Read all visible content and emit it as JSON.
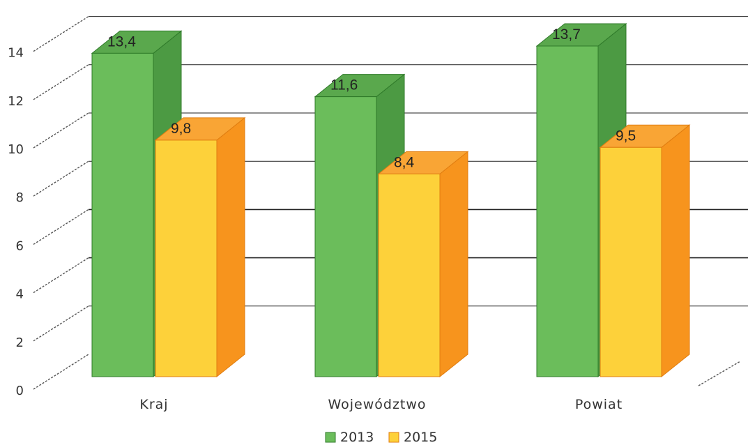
{
  "chart_data": {
    "type": "bar",
    "categories": [
      "Kraj",
      "Województwo",
      "Powiat"
    ],
    "series": [
      {
        "name": "2013",
        "values": [
          13.4,
          11.6,
          13.7
        ],
        "labels": [
          "13,4",
          "11,6",
          "13,7"
        ]
      },
      {
        "name": "2015",
        "values": [
          9.8,
          8.4,
          9.5
        ],
        "labels": [
          "9,8",
          "8,4",
          "9,5"
        ]
      }
    ],
    "ylim": [
      0,
      14
    ],
    "yticks": [
      "0",
      "2",
      "4",
      "6",
      "8",
      "10",
      "12",
      "14"
    ],
    "grid": true,
    "legend_position": "bottom",
    "style": "3d-bars",
    "colors": {
      "series_2013": {
        "front": "#6bbd5b",
        "side": "#4c9a43",
        "top": "#5aa84d",
        "edge": "#2f7a2a"
      },
      "series_2015": {
        "front": "#fdd13a",
        "side": "#f7941d",
        "top": "#f9a535",
        "edge": "#e07d10"
      },
      "grid": "#222222",
      "axis": "#555555"
    }
  }
}
